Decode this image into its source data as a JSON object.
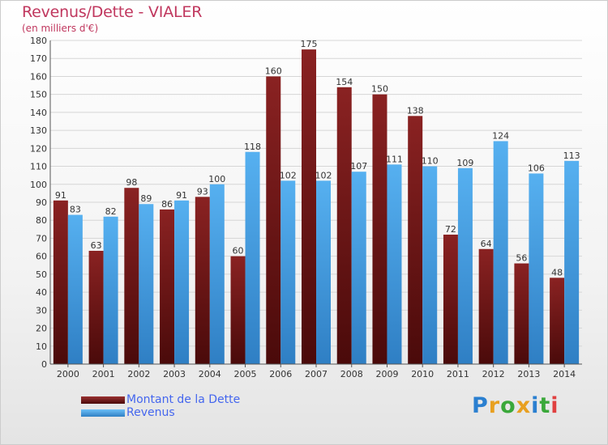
{
  "header": {
    "title": "Revenus/Dette - VIALER",
    "subtitle": "(en milliers d'€)"
  },
  "colors": {
    "dette": "#7a1a1a",
    "revenus": "#4aa3e6",
    "title": "#c0375e",
    "legend_text": "#4466ee"
  },
  "legend": {
    "items": [
      {
        "label": "Montant de la Dette"
      },
      {
        "label": "Revenus"
      }
    ]
  },
  "logo": {
    "text": "Proxiti"
  },
  "chart_data": {
    "type": "bar",
    "title": "Revenus/Dette - VIALER",
    "ylabel": "(en milliers d'€)",
    "ylim": [
      0,
      180
    ],
    "yticks": [
      0,
      10,
      20,
      30,
      40,
      50,
      60,
      70,
      80,
      90,
      100,
      110,
      120,
      130,
      140,
      150,
      160,
      170,
      180
    ],
    "grid": true,
    "legend_position": "bottom-left",
    "categories": [
      "2000",
      "2001",
      "2002",
      "2003",
      "2004",
      "2005",
      "2006",
      "2007",
      "2008",
      "2009",
      "2010",
      "2011",
      "2012",
      "2013",
      "2014"
    ],
    "series": [
      {
        "name": "Montant de la Dette",
        "values": [
          91,
          63,
          98,
          86,
          93,
          60,
          160,
          175,
          154,
          150,
          138,
          72,
          64,
          56,
          48
        ]
      },
      {
        "name": "Revenus",
        "values": [
          83,
          82,
          89,
          91,
          100,
          118,
          102,
          102,
          107,
          111,
          110,
          109,
          124,
          106,
          113
        ]
      }
    ]
  }
}
